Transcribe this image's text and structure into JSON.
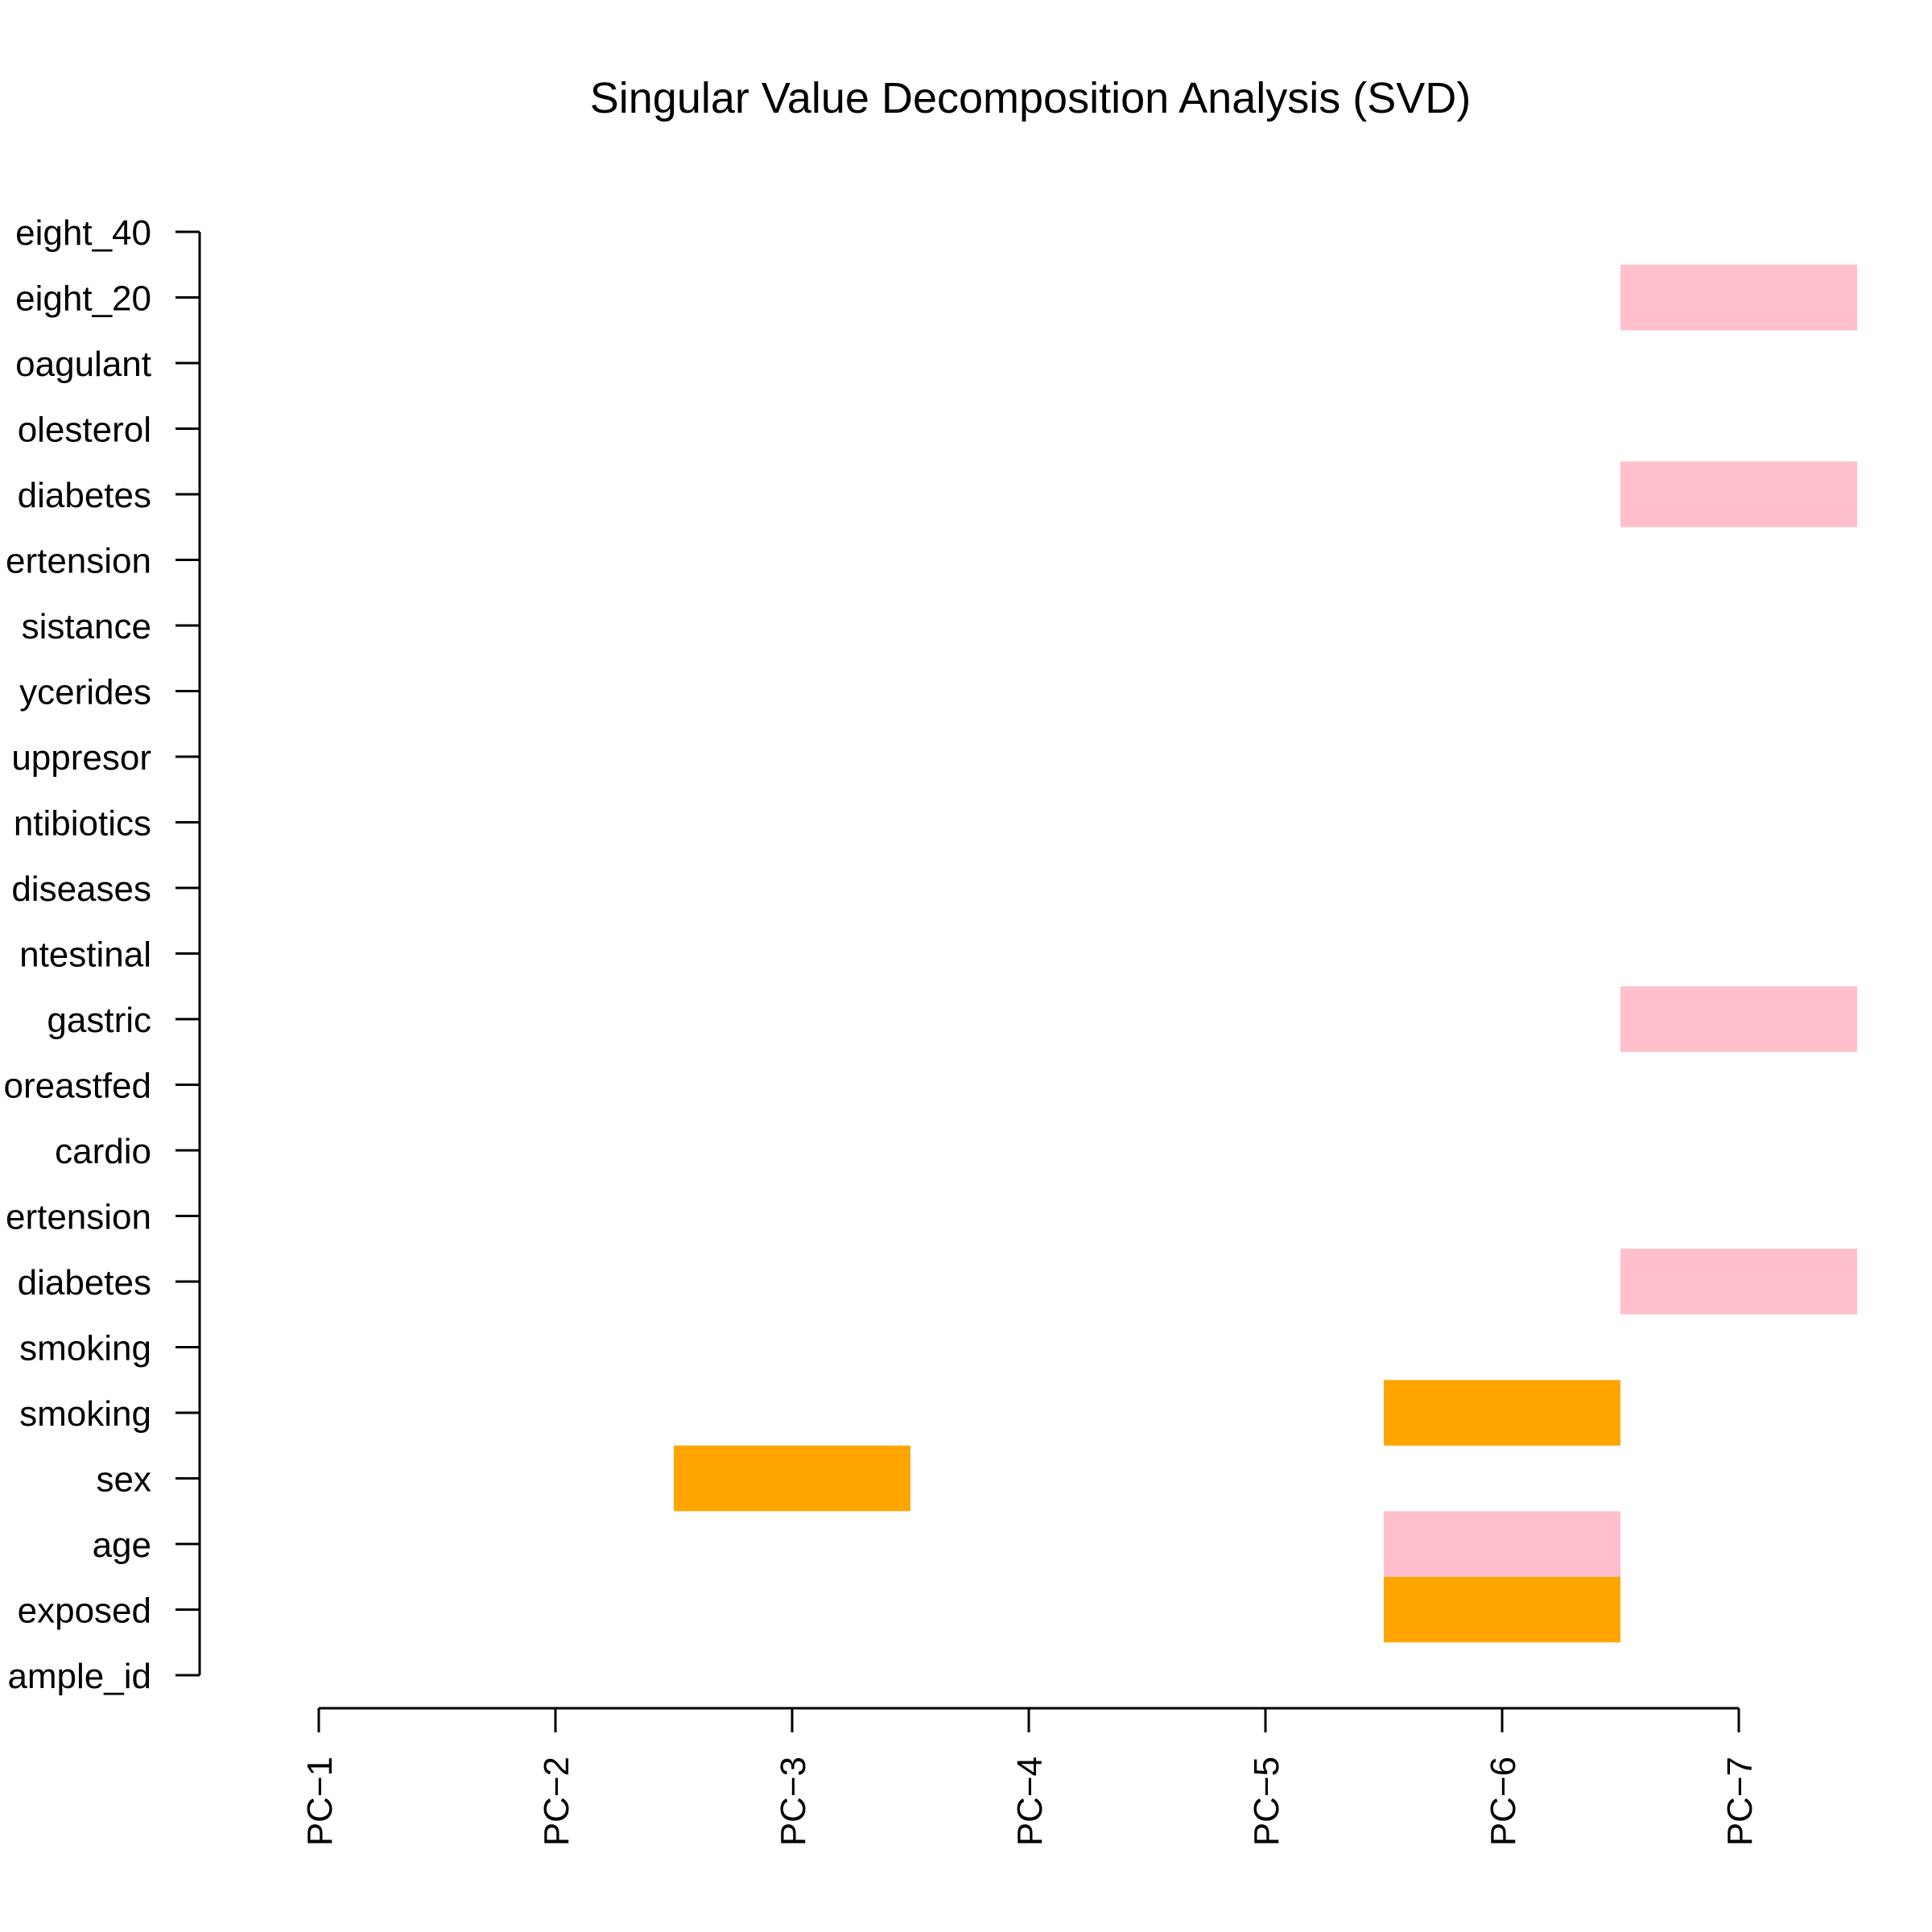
{
  "chart_data": {
    "type": "heatmap",
    "title": "Singular Value Decomposition Analysis (SVD)",
    "xlabel": "",
    "ylabel": "",
    "x_categories": [
      "PC−1",
      "PC−2",
      "PC−3",
      "PC−4",
      "PC−5",
      "PC−6",
      "PC−7"
    ],
    "y_categories": [
      "ample_id",
      "exposed",
      "age",
      "sex",
      "smoking",
      "smoking",
      "diabetes",
      "ertension",
      "cardio",
      "oreastfed",
      "gastric",
      "ntestinal",
      "diseases",
      "ntibiotics",
      "uppresor",
      "ycerides",
      "sistance",
      "ertension",
      "diabetes",
      "olesterol",
      "oagulant",
      "eight_20",
      "eight_40"
    ],
    "colors": {
      "pink": "#ffc0cb",
      "orange": "#ffa500"
    },
    "cells": [
      {
        "x": "PC−3",
        "y_index": 3,
        "color": "orange"
      },
      {
        "x": "PC−6",
        "y_index": 1,
        "color": "orange"
      },
      {
        "x": "PC−6",
        "y_index": 2,
        "color": "pink"
      },
      {
        "x": "PC−6",
        "y_index": 4,
        "color": "orange"
      },
      {
        "x": "PC−7",
        "y_index": 6,
        "color": "pink"
      },
      {
        "x": "PC−7",
        "y_index": 10,
        "color": "pink"
      },
      {
        "x": "PC−7",
        "y_index": 18,
        "color": "pink"
      },
      {
        "x": "PC−7",
        "y_index": 21,
        "color": "pink"
      }
    ]
  }
}
